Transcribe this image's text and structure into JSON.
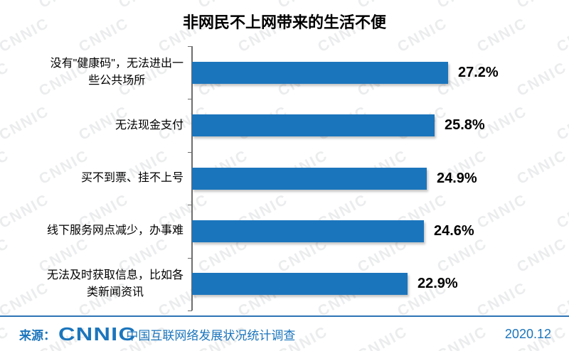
{
  "title": "非网民不上网带来的生活不便",
  "watermark": {
    "text": "CNNIC"
  },
  "chart_data": {
    "type": "bar",
    "orientation": "horizontal",
    "title": "非网民不上网带来的生活不便",
    "categories": [
      "没有\"健康码\"，无法进出一\n些公共场所",
      "无法现金支付",
      "买不到票、挂不上号",
      "线下服务网点减少，办事难",
      "无法及时获取信息，比如各\n类新闻资讯"
    ],
    "values": [
      27.2,
      25.8,
      24.9,
      24.6,
      22.9
    ],
    "value_labels": [
      "27.2%",
      "25.8%",
      "24.9%",
      "24.6%",
      "22.9%"
    ],
    "unit": "%",
    "xlim": [
      0,
      30
    ],
    "bar_color": "#1B75BC",
    "axis_color": "#6e6e6e",
    "grid": false,
    "legend": "none"
  },
  "footer": {
    "source_prefix": "来源：",
    "logo": "CNNIC",
    "source_text": "中国互联网络发展状况统计调查",
    "date": "2020.12",
    "text_color": "#1B75BC",
    "divider_color": "#2E74B5"
  }
}
